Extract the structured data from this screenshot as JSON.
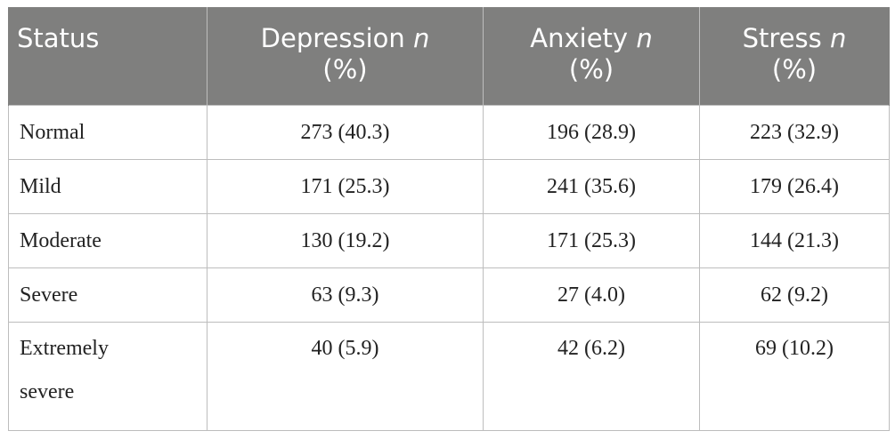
{
  "table": {
    "headers": [
      {
        "main": "Status",
        "italic": "",
        "line2": ""
      },
      {
        "main": "Depression ",
        "italic": "n",
        "line2": "(%)"
      },
      {
        "main": "Anxiety ",
        "italic": "n",
        "line2": "(%)"
      },
      {
        "main": "Stress ",
        "italic": "n",
        "line2": "(%)"
      }
    ],
    "rows": [
      {
        "status": "Normal",
        "depression": "273 (40.3)",
        "anxiety": "196 (28.9)",
        "stress": "223 (32.9)"
      },
      {
        "status": "Mild",
        "depression": "171 (25.3)",
        "anxiety": "241 (35.6)",
        "stress": "179 (26.4)"
      },
      {
        "status": "Moderate",
        "depression": "130 (19.2)",
        "anxiety": "171 (25.3)",
        "stress": "144 (21.3)"
      },
      {
        "status": "Severe",
        "depression": "63 (9.3)",
        "anxiety": "27 (4.0)",
        "stress": "62 (9.2)"
      },
      {
        "status_line1": "Extremely",
        "status_line2": "severe",
        "depression": "40 (5.9)",
        "anxiety": "42 (6.2)",
        "stress": "69 (10.2)"
      }
    ]
  }
}
